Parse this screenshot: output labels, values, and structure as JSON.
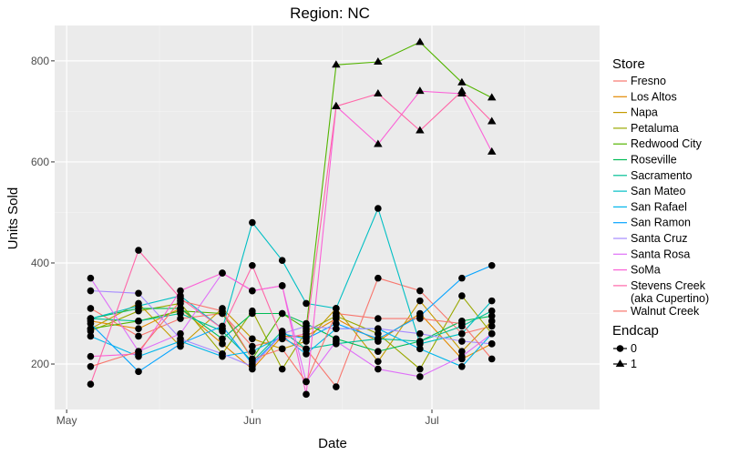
{
  "chart_data": {
    "type": "line",
    "title": "Region: NC",
    "xlabel": "Date",
    "ylabel": "Units Sold",
    "x_ticks": [
      "May",
      "Jun",
      "Jul"
    ],
    "x_tick_dates": [
      "2017-05-01",
      "2017-06-01",
      "2017-07-01"
    ],
    "xlim": [
      "2017-04-29",
      "2017-07-29"
    ],
    "y_ticks": [
      200,
      400,
      600,
      800
    ],
    "ylim": [
      110,
      870
    ],
    "grid": true,
    "legend_position": "right",
    "legend_title": "Store",
    "shape_legend_title": "Endcap",
    "shape_legend": [
      {
        "label": "0",
        "shape": "circle"
      },
      {
        "label": "1",
        "shape": "triangle"
      }
    ],
    "dates": [
      "2017-05-05",
      "2017-05-13",
      "2017-05-20",
      "2017-05-27",
      "2017-06-01",
      "2017-06-06",
      "2017-06-10",
      "2017-06-15",
      "2017-06-22",
      "2017-06-29",
      "2017-07-06",
      "2017-07-11"
    ],
    "series": [
      {
        "name": "Fresno",
        "color": "#F8766D",
        "values": [
          310,
          255,
          290,
          300,
          235,
          250,
          230,
          155,
          370,
          345,
          260,
          275
        ],
        "endcap": [
          0,
          0,
          0,
          0,
          0,
          0,
          0,
          0,
          0,
          0,
          0,
          0
        ]
      },
      {
        "name": "Los Altos",
        "color": "#E38900",
        "values": [
          285,
          270,
          310,
          240,
          190,
          255,
          255,
          290,
          245,
          300,
          210,
          240
        ],
        "endcap": [
          0,
          0,
          0,
          0,
          0,
          0,
          0,
          0,
          0,
          0,
          0,
          0
        ]
      },
      {
        "name": "Napa",
        "color": "#C49A00",
        "values": [
          270,
          320,
          235,
          310,
          250,
          230,
          245,
          310,
          205,
          325,
          225,
          285
        ],
        "endcap": [
          0,
          0,
          0,
          0,
          0,
          0,
          0,
          0,
          0,
          0,
          0,
          0
        ]
      },
      {
        "name": "Petaluma",
        "color": "#99A800",
        "values": [
          265,
          305,
          320,
          220,
          305,
          190,
          265,
          295,
          260,
          190,
          335,
          260
        ],
        "endcap": [
          0,
          0,
          0,
          0,
          0,
          0,
          0,
          0,
          0,
          0,
          0,
          0
        ]
      },
      {
        "name": "Redwood City",
        "color": "#53B400",
        "values": [
          270,
          285,
          305,
          300,
          210,
          300,
          270,
          792,
          798,
          837,
          757,
          727
        ],
        "endcap": [
          0,
          0,
          0,
          0,
          0,
          0,
          0,
          1,
          1,
          1,
          1,
          1
        ]
      },
      {
        "name": "Roseville",
        "color": "#00BC56",
        "values": [
          290,
          310,
          310,
          250,
          300,
          300,
          280,
          250,
          225,
          245,
          285,
          295
        ],
        "endcap": [
          0,
          0,
          0,
          0,
          0,
          0,
          0,
          0,
          0,
          0,
          0,
          0
        ]
      },
      {
        "name": "Sacramento",
        "color": "#00C094",
        "values": [
          290,
          285,
          300,
          265,
          205,
          265,
          230,
          240,
          250,
          245,
          275,
          305
        ],
        "endcap": [
          0,
          0,
          0,
          0,
          0,
          0,
          0,
          0,
          0,
          0,
          0,
          0
        ]
      },
      {
        "name": "San Mateo",
        "color": "#00BFC4",
        "values": [
          290,
          315,
          335,
          270,
          480,
          405,
          320,
          310,
          508,
          240,
          260,
          325
        ],
        "endcap": [
          0,
          0,
          0,
          0,
          0,
          0,
          0,
          0,
          0,
          0,
          0,
          0
        ]
      },
      {
        "name": "San Rafael",
        "color": "#00B6EB",
        "values": [
          255,
          215,
          245,
          215,
          225,
          255,
          220,
          270,
          270,
          230,
          195,
          260
        ],
        "endcap": [
          0,
          0,
          0,
          0,
          0,
          0,
          0,
          0,
          0,
          0,
          0,
          0
        ]
      },
      {
        "name": "San Ramon",
        "color": "#06A4FF",
        "values": [
          280,
          185,
          240,
          275,
          200,
          260,
          250,
          280,
          250,
          295,
          370,
          395
        ],
        "endcap": [
          0,
          0,
          0,
          0,
          0,
          0,
          0,
          0,
          0,
          0,
          0,
          0
        ]
      },
      {
        "name": "Santa Cruz",
        "color": "#A58AFF",
        "values": [
          345,
          340,
          250,
          220,
          195,
          260,
          275,
          270,
          270,
          260,
          245,
          240
        ],
        "endcap": [
          0,
          0,
          0,
          0,
          0,
          0,
          0,
          0,
          0,
          0,
          0,
          0
        ]
      },
      {
        "name": "Santa Rosa",
        "color": "#DF70F8",
        "values": [
          370,
          225,
          260,
          380,
          345,
          355,
          165,
          245,
          190,
          175,
          215,
          260
        ],
        "endcap": [
          0,
          0,
          0,
          0,
          0,
          0,
          0,
          0,
          0,
          0,
          0,
          0
        ]
      },
      {
        "name": "SoMa",
        "color": "#FB61D7",
        "values": [
          215,
          220,
          345,
          380,
          345,
          355,
          140,
          710,
          635,
          740,
          735,
          620
        ],
        "endcap": [
          0,
          0,
          0,
          0,
          0,
          0,
          0,
          1,
          1,
          1,
          1,
          1
        ]
      },
      {
        "name": "Stevens Creek\n(aka Cupertino)",
        "color": "#FF66A8",
        "values": [
          160,
          425,
          330,
          270,
          395,
          250,
          260,
          710,
          735,
          662,
          740,
          680
        ],
        "endcap": [
          0,
          0,
          0,
          0,
          0,
          0,
          0,
          1,
          1,
          1,
          1,
          1
        ]
      },
      {
        "name": "Walnut Creek",
        "color": "#F8766D",
        "values": [
          195,
          225,
          325,
          305,
          210,
          230,
          165,
          300,
          290,
          290,
          280,
          210
        ],
        "endcap": [
          0,
          0,
          0,
          0,
          0,
          0,
          0,
          0,
          0,
          0,
          0,
          0
        ]
      }
    ]
  }
}
